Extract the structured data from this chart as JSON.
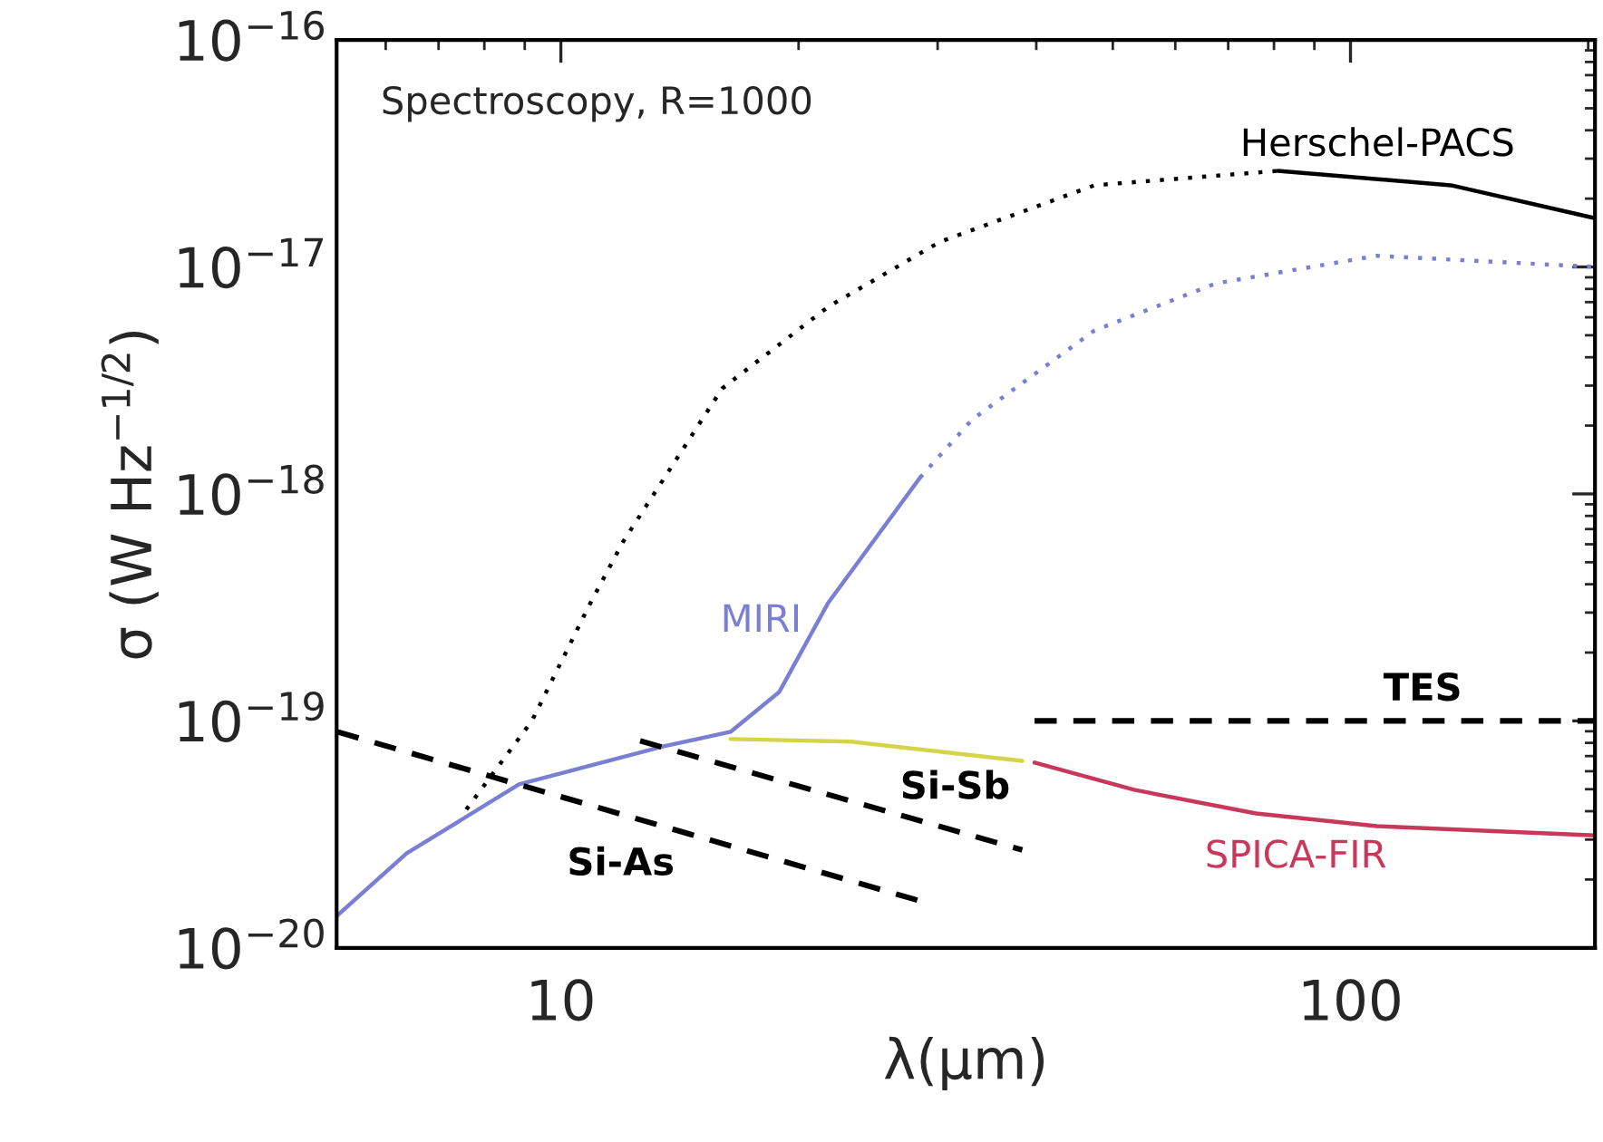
{
  "chart_data": {
    "type": "line",
    "xlabel": "λ(μm)",
    "ylabel": "σ (W Hz$^{−1/2}$)",
    "log": "xy",
    "grid": false,
    "legend": false,
    "marker": "none",
    "xlim": [
      5.2,
      204
    ],
    "xticks": [
      10,
      100
    ],
    "ylim": [
      1e-20,
      1e-16
    ],
    "yticks": [
      {
        "value": 1e-20,
        "label": "10$^{−20}$"
      },
      {
        "value": 1e-19,
        "label": "10$^{−19}$"
      },
      {
        "value": 1e-18,
        "label": "10$^{−18}$"
      },
      {
        "value": 1e-17,
        "label": "10$^{−17}$"
      },
      {
        "value": 1e-16,
        "label": "10$^{−16}$"
      }
    ],
    "series": [
      {
        "color": "#000000",
        "line_style": "dotted",
        "x": [
          7.59,
          9.19,
          10.9,
          12.0,
          16.0,
          21.8,
          30.2,
          47.4,
          80.9
        ],
        "values": [
          4.07e-20,
          1e-19,
          3.31e-19,
          6.19e-19,
          2.91e-18,
          6.67e-18,
          1.29e-17,
          2.29e-17,
          2.65e-17
        ]
      },
      {
        "name": "Herschel-PACS",
        "color": "#000000",
        "line_style": "solid",
        "x": [
          80.9,
          134,
          204
        ],
        "values": [
          2.65e-17,
          2.29e-17,
          1.64e-17
        ]
      },
      {
        "name": "MIRI",
        "color": "#7b7fd4",
        "line_style": "solid",
        "x": [
          5.21,
          6.38,
          8.85,
          13.5,
          16.4,
          18.9,
          21.8,
          28.5
        ],
        "values": [
          1.39e-20,
          2.61e-20,
          5.25e-20,
          7.73e-20,
          8.95e-20,
          1.34e-19,
          3.31e-19,
          1.18e-18
        ]
      },
      {
        "color": "#7b7fd4",
        "line_style": "dotted",
        "x": [
          28.5,
          33.2,
          47.4,
          67.6,
          108,
          204
        ],
        "values": [
          1.18e-18,
          2.13e-18,
          5.25e-18,
          8.47e-18,
          1.12e-17,
          1e-17
        ]
      },
      {
        "color": "#d4d44a",
        "line_style": "solid",
        "x": [
          16.4,
          23.3,
          38.4
        ],
        "values": [
          8.32e-20,
          8.1e-20,
          6.67e-20
        ]
      },
      {
        "name": "SPICA-FIR",
        "color": "#c8385a",
        "line_style": "solid",
        "x": [
          39.8,
          53.2,
          75.9,
          108,
          204
        ],
        "values": [
          6.55e-20,
          4.97e-20,
          3.91e-20,
          3.44e-20,
          3.13e-20
        ]
      },
      {
        "name": "Si-As",
        "color": "#000000",
        "line_style": "dashed",
        "x": [
          5.21,
          28.5
        ],
        "values": [
          8.95e-20,
          1.61e-20
        ]
      },
      {
        "name": "Si-Sb",
        "color": "#000000",
        "line_style": "dashed",
        "x": [
          12.6,
          38.4
        ],
        "values": [
          8.17e-20,
          2.7e-20
        ]
      },
      {
        "name": "TES",
        "color": "#000000",
        "line_style": "dashed",
        "x": [
          39.8,
          204
        ],
        "values": [
          1e-19,
          1e-19
        ]
      }
    ],
    "annotations": [
      "Spectroscopy, R=1000"
    ]
  }
}
